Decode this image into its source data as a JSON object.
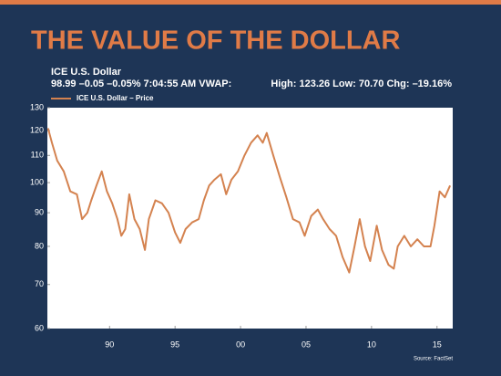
{
  "chart_data": {
    "type": "line",
    "title": "THE VALUE OF THE DOLLAR",
    "subtitle": "ICE U.S. Dollar",
    "quote": "98.99 –0.05 –0.05% 7:04:55 AM VWAP:",
    "stats": "High: 123.26 Low: 70.70 Chg: –19.16%",
    "source": "Source: FactSet",
    "log_scale": true,
    "grid": false,
    "legend": "top-left",
    "x": [
      1985.3,
      1985.6,
      1986,
      1986.5,
      1987,
      1987.5,
      1987.9,
      1988.3,
      1988.6,
      1989,
      1989.4,
      1989.8,
      1990.2,
      1990.6,
      1990.9,
      1991.2,
      1991.5,
      1991.9,
      1992.3,
      1992.7,
      1993,
      1993.5,
      1994,
      1994.5,
      1995,
      1995.4,
      1995.8,
      1996.3,
      1996.8,
      1997.2,
      1997.6,
      1998,
      1998.5,
      1998.9,
      1999.3,
      1999.8,
      2000.3,
      2000.8,
      2001.3,
      2001.7,
      2002,
      2002.5,
      2003,
      2003.5,
      2004,
      2004.5,
      2004.9,
      2005.4,
      2005.9,
      2006.3,
      2006.8,
      2007.3,
      2007.8,
      2008.3,
      2008.7,
      2009.1,
      2009.5,
      2009.9,
      2010.4,
      2010.8,
      2011.3,
      2011.7,
      2012,
      2012.5,
      2013,
      2013.5,
      2014,
      2014.5,
      2014.8,
      2015.2,
      2015.6,
      2016
    ],
    "series": [
      {
        "name": "ICE U.S. Dollar – Price",
        "color": "#d4824f",
        "values": [
          121,
          115,
          108,
          104,
          97,
          96,
          88,
          90,
          94,
          99,
          104,
          97,
          93,
          88,
          83,
          85,
          96,
          88,
          85,
          79,
          88,
          94,
          93,
          90,
          84,
          81,
          85,
          87,
          88,
          94,
          99,
          101,
          103,
          96,
          101,
          104,
          110,
          115,
          118,
          115,
          119,
          110,
          102,
          95,
          88,
          87,
          83,
          89,
          91,
          88,
          85,
          83,
          77,
          73,
          80,
          88,
          80,
          76,
          86,
          79,
          75,
          74,
          80,
          83,
          80,
          82,
          80,
          80,
          86,
          97,
          95,
          99
        ]
      }
    ],
    "xlim": [
      1985.25,
      2016.2
    ],
    "ylim": [
      60,
      130
    ],
    "xticks": [
      {
        "value": 1990,
        "label": "90"
      },
      {
        "value": 1995,
        "label": "95"
      },
      {
        "value": 2000,
        "label": "00"
      },
      {
        "value": 2005,
        "label": "05"
      },
      {
        "value": 2010,
        "label": "10"
      },
      {
        "value": 2015,
        "label": "15"
      }
    ],
    "yticks": [
      60,
      70,
      80,
      90,
      100,
      110,
      120,
      130
    ]
  }
}
